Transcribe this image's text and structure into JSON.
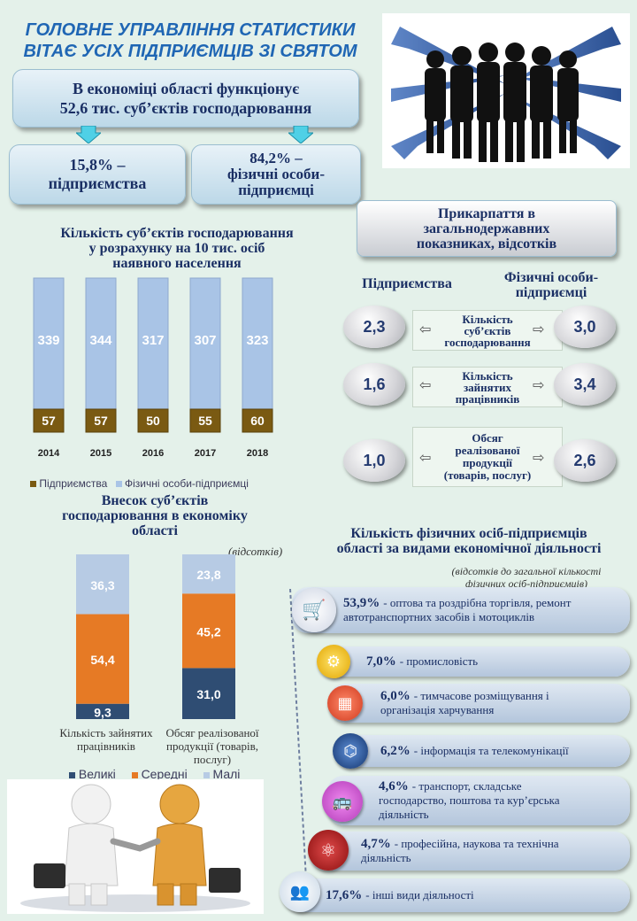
{
  "header": {
    "title_line1": "ГОЛОВНЕ УПРАВЛІННЯ СТАТИСТИКИ",
    "title_line2": "ВІТАЄ УСІХ ПІДПРИЄМЦІВ ЗІ СВЯТОМ",
    "main_line1": "В економіці області функціонує",
    "main_line2": "52,6 тис. суб’єктів господарювання",
    "left_box_line1": "15,8% –",
    "left_box_line2": "підприємства",
    "right_box_line1": "84,2% –",
    "right_box_line2": "фізичні особи-",
    "right_box_line3": "підприємці"
  },
  "bar_section": {
    "title_line1": "Кількість суб’єктів господарювання",
    "title_line2": "у розрахунку на 10 тис. осіб",
    "title_line3": "наявного населення",
    "legend_enterprises": "Підприємства",
    "legend_individuals": "Фізичні особи-підприємці"
  },
  "comparison": {
    "title_line1": "Прикарпаття в",
    "title_line2": "загальнодержавних",
    "title_line3": "показниках, відсотків",
    "col_left": "Підприємства",
    "col_right_line1": "Фізичні особи-",
    "col_right_line2": "підприємці",
    "rows": [
      {
        "left": "2,3",
        "label_line1": "Кількість",
        "label_line2": "суб’єктів",
        "label_line3": "господарювання",
        "right": "3,0"
      },
      {
        "left": "1,6",
        "label_line1": "Кількість",
        "label_line2": "зайнятих",
        "label_line3": "працівників",
        "right": "3,4"
      },
      {
        "left": "1,0",
        "label_line1": "Обсяг",
        "label_line2": "реалізованої",
        "label_line3": "продукції",
        "label_line4": "(товарів, послуг)",
        "right": "2,6"
      }
    ]
  },
  "contrib_section": {
    "title_line1": "Внесок суб’єктів",
    "title_line2": "господарювання в економіку",
    "title_line3": "області",
    "unit": "(відсотків)",
    "cat1_line1": "Кількість зайнятих",
    "cat1_line2": "працівників",
    "cat2_line1": "Обсяг реалізованої",
    "cat2_line2": "продукції (товарів,",
    "cat2_line3": "послуг)",
    "legend_large": "Великі",
    "legend_medium": "Середні",
    "legend_small": "Малі"
  },
  "activities": {
    "title_line1": "Кількість фізичних осіб-підприємців",
    "title_line2": "області за видами економічної діяльності",
    "note_line1": "(відсотків до загальної кількості",
    "note_line2": "фізичних осіб-підприємців)",
    "items": [
      {
        "pct": "53,9%",
        "text_line1": "- оптова та роздрібна торгівля, ремонт",
        "text_line2": "автотранспортних засобів і мотоциклів",
        "icon": "shopping-cart-icon"
      },
      {
        "pct": "7,0%",
        "text_line1": "-  промисловість",
        "text_line2": "",
        "icon": "gear-icon"
      },
      {
        "pct": "6,0%",
        "text_line1": "- тимчасове розміщування і",
        "text_line2": "організація харчування",
        "icon": "hotel-icon"
      },
      {
        "pct": "6,2%",
        "text_line1": "- інформація та  телекомунікації",
        "text_line2": "",
        "icon": "network-icon"
      },
      {
        "pct": "4,6%",
        "text_line1": "- транспорт, складське",
        "text_line2": "господарство, поштова та кур’єрська",
        "text_line3": "діяльність",
        "icon": "bus-icon"
      },
      {
        "pct": "4,7%",
        "text_line1": "- професійна, наукова та технічна",
        "text_line2": "діяльність",
        "icon": "atom-icon"
      },
      {
        "pct": "17,6%",
        "text_line1": "-  інші види діяльності",
        "text_line2": "",
        "icon": "people-icon"
      }
    ]
  },
  "colors": {
    "blue_bar": "#a9c4e6",
    "gold_bar": "#7a5a12",
    "large": "#2f4d73",
    "medium": "#e67a25",
    "small": "#b7cbe4"
  },
  "chart_data": [
    {
      "type": "bar",
      "title": "Кількість суб’єктів господарювання у розрахунку на 10 тис. осіб наявного населення",
      "categories": [
        "2014",
        "2015",
        "2016",
        "2017",
        "2018"
      ],
      "series": [
        {
          "name": "Підприємства",
          "values": [
            57,
            57,
            50,
            55,
            60
          ]
        },
        {
          "name": "Фізичні особи-підприємці",
          "values": [
            339,
            344,
            317,
            307,
            323
          ]
        }
      ],
      "stacked": true
    },
    {
      "type": "bar",
      "title": "Внесок суб’єктів господарювання в економіку області",
      "categories": [
        "Кількість зайнятих працівників",
        "Обсяг реалізованої продукції (товарів, послуг)"
      ],
      "series": [
        {
          "name": "Великі",
          "values": [
            9.3,
            31.0
          ],
          "labels": [
            "9,3",
            "31,0"
          ]
        },
        {
          "name": "Середні",
          "values": [
            54.4,
            45.2
          ],
          "labels": [
            "54,4",
            "45,2"
          ]
        },
        {
          "name": "Малі",
          "values": [
            36.3,
            23.8
          ],
          "labels": [
            "36,3",
            "23,8"
          ]
        }
      ],
      "stacked": true,
      "ylabel": "відсотків"
    }
  ]
}
